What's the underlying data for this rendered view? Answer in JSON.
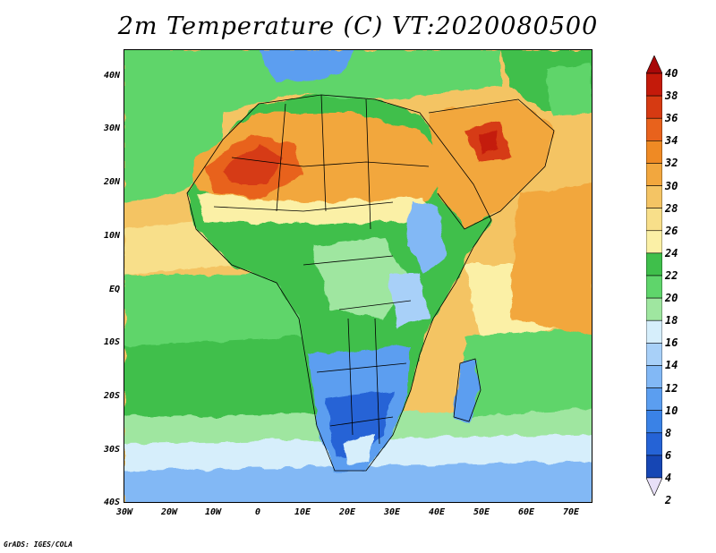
{
  "title": "2m Temperature (C) VT:2020080500",
  "credit": "GrADS: IGES/COLA",
  "lat_labels": [
    "40N",
    "30N",
    "20N",
    "10N",
    "EQ",
    "10S",
    "20S",
    "30S",
    "40S"
  ],
  "lat_values": [
    40,
    30,
    20,
    10,
    0,
    -10,
    -20,
    -30,
    -40
  ],
  "lon_labels": [
    "30W",
    "20W",
    "10W",
    "0",
    "10E",
    "20E",
    "30E",
    "40E",
    "50E",
    "60E",
    "70E"
  ],
  "lon_values": [
    -30,
    -20,
    -10,
    0,
    10,
    20,
    30,
    40,
    50,
    60,
    70
  ],
  "map_extent": {
    "lon_min": -30,
    "lon_max": 75,
    "lat_min": -40,
    "lat_max": 45
  },
  "colorbar": {
    "levels": [
      "2",
      "4",
      "6",
      "8",
      "10",
      "12",
      "14",
      "16",
      "18",
      "20",
      "22",
      "24",
      "26",
      "28",
      "30",
      "32",
      "34",
      "36",
      "38",
      "40"
    ],
    "colors": [
      "#0a1f78",
      "#1646b4",
      "#2563d6",
      "#3a82e6",
      "#5b9ef0",
      "#82b8f5",
      "#a8d0f8",
      "#d6eefb",
      "#9fe6a0",
      "#5fd56b",
      "#3fbf4b",
      "#fbf0a6",
      "#f8df8a",
      "#f4c464",
      "#f2a73e",
      "#ef8a24",
      "#e8621c",
      "#d63a12",
      "#c41a0a",
      "#a80808"
    ]
  }
}
